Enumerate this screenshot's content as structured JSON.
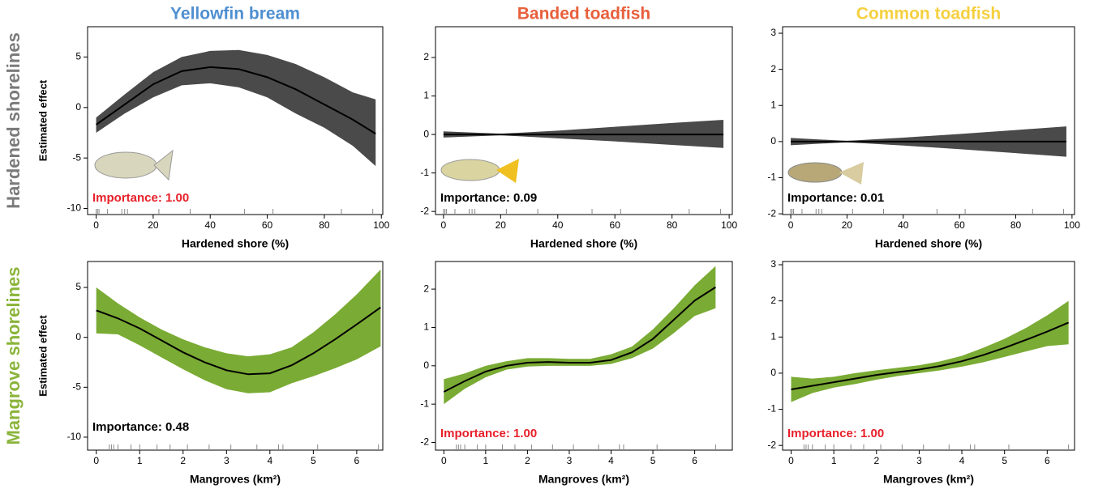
{
  "row_titles": [
    {
      "text": "Hardened shorelines",
      "color": "#7a7a7a"
    },
    {
      "text": "Mangrove shorelines",
      "color": "#8ab43a"
    }
  ],
  "chart_data": [
    {
      "type": "line",
      "title": "Yellowfin bream",
      "title_color": "#4f8fd0",
      "y_label": "Estimated effect",
      "x_label": "Hardened shore (%)",
      "annotation": {
        "text": "Importance: 1.00",
        "color": "#e8202a"
      },
      "x": [
        0,
        10,
        20,
        30,
        40,
        50,
        60,
        70,
        80,
        90,
        98
      ],
      "values": [
        -1.7,
        0.3,
        2.3,
        3.6,
        4.0,
        3.8,
        3.0,
        1.8,
        0.3,
        -1.2,
        -2.6
      ],
      "lower": [
        -2.5,
        -0.6,
        1.0,
        2.2,
        2.4,
        2.0,
        1.0,
        -0.6,
        -2.0,
        -3.8,
        -5.8
      ],
      "upper": [
        -1.0,
        1.3,
        3.5,
        5.0,
        5.6,
        5.7,
        5.2,
        4.3,
        3.0,
        1.5,
        0.8
      ],
      "color": "#000000",
      "band_color": "#4a4a4a",
      "rug": [
        0,
        0.5,
        1,
        4,
        9,
        10,
        11,
        22,
        33,
        52,
        62,
        86,
        97
      ],
      "xlim": [
        -3,
        100.5
      ],
      "ylim": [
        -10.6,
        8.0
      ],
      "xticks": [
        0,
        20,
        40,
        60,
        80,
        100
      ],
      "yticks": [
        -10,
        -5,
        0,
        5
      ]
    },
    {
      "type": "line",
      "title": "Banded toadfish",
      "title_color": "#e8603c",
      "x_label": "Hardened shore (%)",
      "annotation": {
        "text": "Importance: 0.09",
        "color": "#000000"
      },
      "x": [
        0,
        20,
        40,
        60,
        80,
        98
      ],
      "values": [
        0,
        0,
        0,
        0,
        0,
        0
      ],
      "lower": [
        -0.08,
        -0.02,
        -0.1,
        -0.18,
        -0.27,
        -0.35
      ],
      "upper": [
        0.08,
        0.02,
        0.1,
        0.2,
        0.3,
        0.38
      ],
      "color": "#000000",
      "band_color": "#4a4a4a",
      "rug": [
        0,
        0.5,
        1,
        4,
        9,
        10,
        11,
        22,
        33,
        52,
        62,
        86,
        97
      ],
      "xlim": [
        -2.8,
        101.1
      ],
      "ylim": [
        -2.08,
        2.8
      ],
      "xticks": [
        0,
        20,
        40,
        60,
        80,
        100
      ],
      "yticks": [
        -2,
        -1,
        0,
        1,
        2
      ]
    },
    {
      "type": "line",
      "title": "Common toadfish",
      "title_color": "#f5d040",
      "x_label": "Hardened shore (%)",
      "annotation": {
        "text": "Importance: 0.01",
        "color": "#000000"
      },
      "x": [
        0,
        20,
        40,
        60,
        80,
        98
      ],
      "values": [
        0,
        0,
        0,
        0,
        0,
        0
      ],
      "lower": [
        -0.1,
        -0.02,
        -0.11,
        -0.21,
        -0.32,
        -0.42
      ],
      "upper": [
        0.1,
        0.02,
        0.11,
        0.21,
        0.32,
        0.42
      ],
      "color": "#000000",
      "band_color": "#4a4a4a",
      "rug": [
        0,
        0.5,
        1,
        4,
        9,
        10,
        11,
        22,
        33,
        52,
        62,
        86,
        97
      ],
      "xlim": [
        -2.9,
        100.9
      ],
      "ylim": [
        -2.02,
        3.18
      ],
      "xticks": [
        0,
        20,
        40,
        60,
        80,
        {
          "value": 100,
          "label": "100"
        }
      ],
      "yticks": [
        -2,
        -1,
        0,
        1,
        2,
        3
      ]
    },
    {
      "type": "line",
      "y_label": "Estimated effect",
      "x_label": "Mangroves (km²)",
      "annotation": {
        "text": "Importance: 0.48",
        "color": "#000000"
      },
      "x": [
        0,
        0.5,
        1,
        1.5,
        2,
        2.5,
        3,
        3.5,
        4,
        4.5,
        5,
        5.5,
        6,
        6.55
      ],
      "values": [
        2.7,
        1.9,
        0.9,
        -0.3,
        -1.5,
        -2.5,
        -3.3,
        -3.7,
        -3.6,
        -2.8,
        -1.6,
        -0.2,
        1.3,
        3.0
      ],
      "lower": [
        0.4,
        0.3,
        -0.8,
        -2.0,
        -3.2,
        -4.3,
        -5.2,
        -5.6,
        -5.5,
        -4.6,
        -3.9,
        -3.1,
        -2.2,
        -0.9
      ],
      "upper": [
        5.0,
        3.4,
        2.0,
        0.8,
        -0.2,
        -1.0,
        -1.6,
        -1.9,
        -1.7,
        -1.0,
        0.5,
        2.3,
        4.3,
        6.8
      ],
      "color": "#000000",
      "band_color": "#7aab34",
      "rug": [
        0.3,
        0.35,
        0.4,
        0.5,
        0.8,
        1.0,
        1.4,
        1.7,
        2.1,
        2.6,
        3.1,
        3.7,
        4.2,
        4.3,
        5.1,
        6.5
      ],
      "xlim": [
        -0.2,
        6.6
      ],
      "ylim": [
        -11.3,
        7.6
      ],
      "xticks": [
        0,
        1,
        2,
        3,
        4,
        5,
        6
      ],
      "yticks": [
        -10,
        -5,
        0,
        5
      ]
    },
    {
      "type": "line",
      "x_label": "Mangroves (km²)",
      "annotation": {
        "text": "Importance: 1.00",
        "color": "#e8202a"
      },
      "x": [
        0,
        0.5,
        1,
        1.5,
        2,
        2.5,
        3,
        3.5,
        4,
        4.5,
        5,
        5.5,
        6,
        6.5
      ],
      "values": [
        -0.68,
        -0.4,
        -0.15,
        0.0,
        0.08,
        0.1,
        0.08,
        0.08,
        0.15,
        0.35,
        0.7,
        1.2,
        1.7,
        2.05
      ],
      "lower": [
        -1.0,
        -0.6,
        -0.3,
        -0.1,
        -0.02,
        0.0,
        0.0,
        0.0,
        0.05,
        0.2,
        0.45,
        0.85,
        1.3,
        1.5
      ],
      "upper": [
        -0.35,
        -0.2,
        0.0,
        0.12,
        0.2,
        0.2,
        0.18,
        0.18,
        0.3,
        0.5,
        0.95,
        1.5,
        2.1,
        2.6
      ],
      "color": "#000000",
      "band_color": "#7aab34",
      "rug": [
        0.3,
        0.35,
        0.4,
        0.5,
        0.8,
        1.0,
        1.4,
        1.7,
        2.1,
        2.6,
        3.1,
        3.7,
        4.2,
        4.3,
        5.1,
        6.5
      ],
      "xlim": [
        -0.2,
        6.9
      ],
      "ylim": [
        -2.2,
        2.72
      ],
      "xticks": [
        0,
        1,
        2,
        3,
        4,
        5,
        6
      ],
      "yticks": [
        -2,
        -1,
        0,
        1,
        2
      ]
    },
    {
      "type": "line",
      "x_label": "Mangroves (km²)",
      "annotation": {
        "text": "Importance: 1.00",
        "color": "#e8202a"
      },
      "x": [
        0,
        0.5,
        1,
        1.5,
        2,
        2.5,
        3,
        3.5,
        4,
        4.5,
        5,
        5.5,
        6,
        6.5
      ],
      "values": [
        -0.45,
        -0.35,
        -0.25,
        -0.15,
        -0.05,
        0.03,
        0.1,
        0.2,
        0.33,
        0.5,
        0.7,
        0.92,
        1.15,
        1.4
      ],
      "lower": [
        -0.8,
        -0.55,
        -0.4,
        -0.3,
        -0.18,
        -0.08,
        0.0,
        0.08,
        0.18,
        0.3,
        0.45,
        0.6,
        0.75,
        0.8
      ],
      "upper": [
        -0.1,
        -0.15,
        -0.1,
        0.0,
        0.08,
        0.15,
        0.22,
        0.33,
        0.48,
        0.7,
        0.95,
        1.25,
        1.6,
        2.0
      ],
      "color": "#000000",
      "band_color": "#7aab34",
      "rug": [
        0.3,
        0.35,
        0.4,
        0.5,
        0.8,
        1.0,
        1.4,
        1.7,
        2.1,
        2.6,
        3.1,
        3.7,
        4.2,
        4.3,
        5.1,
        6.5
      ],
      "xlim": [
        -0.2,
        6.64
      ],
      "ylim": [
        -2.13,
        3.09
      ],
      "xticks": [
        0,
        1,
        2,
        3,
        4,
        5,
        6
      ],
      "yticks": [
        -2,
        -1,
        0,
        1,
        2,
        3
      ]
    }
  ]
}
